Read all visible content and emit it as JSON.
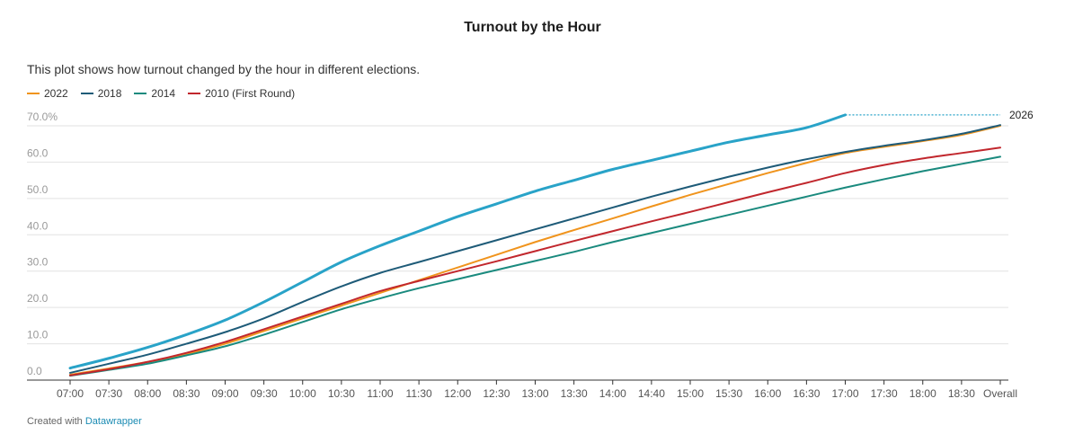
{
  "title": "Turnout by the Hour",
  "subtitle": "This plot shows how turnout changed by the hour in different elections.",
  "footer": {
    "prefix": "Created with",
    "link": "Datawrapper"
  },
  "chart_data": {
    "type": "line",
    "title": "Turnout by the Hour",
    "xlabel": "",
    "ylabel": "",
    "ylim": [
      0,
      70
    ],
    "yticks": [
      "0.0",
      "10.0",
      "20.0",
      "30.0",
      "40.0",
      "50.0",
      "60.0",
      "70.0%"
    ],
    "grid": true,
    "legend_position": "top-left",
    "categories": [
      "07:00",
      "07:30",
      "08:00",
      "08:30",
      "09:00",
      "09:30",
      "10:00",
      "10:30",
      "11:00",
      "11:30",
      "12:00",
      "12:30",
      "13:00",
      "13:30",
      "14:00",
      "14:40",
      "15:00",
      "15:30",
      "16:00",
      "16:30",
      "17:00",
      "17:30",
      "18:00",
      "18:30",
      "Overall"
    ],
    "series": [
      {
        "name": "2022",
        "color": "#f0941d",
        "legend": true,
        "values": [
          1.5,
          3.2,
          5.0,
          7.2,
          10.0,
          13.5,
          17.0,
          20.5,
          24.0,
          27.5,
          31.0,
          34.5,
          38.0,
          41.3,
          44.5,
          47.8,
          51.0,
          54.0,
          57.0,
          59.8,
          62.5,
          64.2,
          65.8,
          67.5,
          70.0
        ]
      },
      {
        "name": "2018",
        "color": "#1e5b78",
        "legend": true,
        "values": [
          2.0,
          4.5,
          7.0,
          10.0,
          13.2,
          17.0,
          21.5,
          25.8,
          29.5,
          32.5,
          35.5,
          38.5,
          41.5,
          44.5,
          47.5,
          50.5,
          53.3,
          56.0,
          58.5,
          60.8,
          62.8,
          64.5,
          66.0,
          67.8,
          70.2
        ]
      },
      {
        "name": "2014",
        "color": "#1a8a7e",
        "legend": true,
        "values": [
          1.2,
          2.8,
          4.5,
          6.8,
          9.3,
          12.5,
          16.0,
          19.5,
          22.5,
          25.3,
          27.8,
          30.3,
          32.8,
          35.3,
          38.0,
          40.5,
          43.0,
          45.5,
          48.0,
          50.5,
          53.0,
          55.3,
          57.5,
          59.5,
          61.5
        ]
      },
      {
        "name": "2010 (First Round)",
        "color": "#c1272d",
        "legend": true,
        "values": [
          1.3,
          3.0,
          5.0,
          7.5,
          10.5,
          14.0,
          17.5,
          21.0,
          24.5,
          27.3,
          30.0,
          32.7,
          35.5,
          38.3,
          41.0,
          43.7,
          46.3,
          49.0,
          51.7,
          54.3,
          57.0,
          59.2,
          61.0,
          62.5,
          64.0
        ]
      },
      {
        "name": "2026",
        "color": "#29a3c8",
        "legend": false,
        "label_at_end": true,
        "values": [
          3.3,
          6.0,
          9.0,
          12.5,
          16.5,
          21.5,
          27.0,
          32.5,
          37.0,
          41.0,
          45.0,
          48.5,
          52.0,
          55.0,
          58.0,
          60.5,
          63.0,
          65.5,
          67.5,
          69.5,
          73.0,
          null,
          null,
          null,
          null
        ],
        "projection_to": "Overall"
      }
    ]
  }
}
